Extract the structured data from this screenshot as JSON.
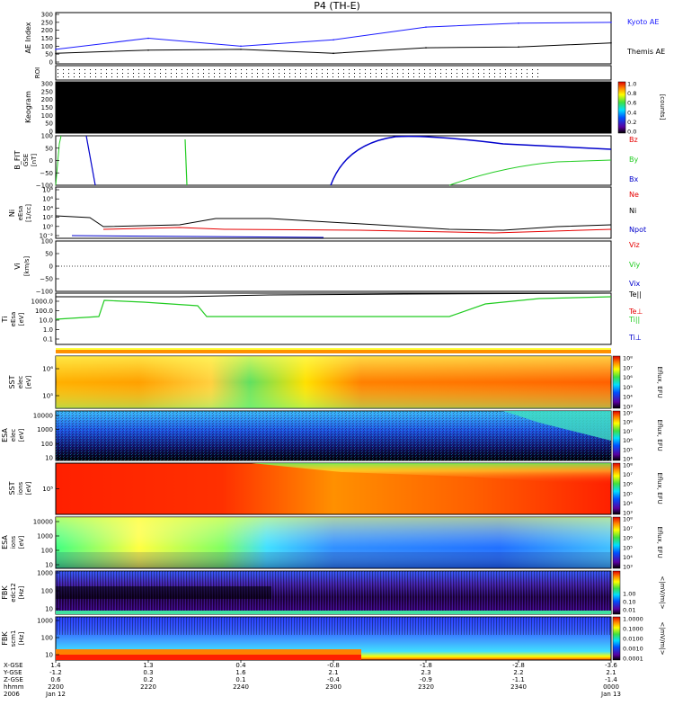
{
  "title": "P4 (TH-E)",
  "colors": {
    "kyoto_ae": "#1a1aff",
    "themis_ae": "#000000",
    "bz": "#e60000",
    "by": "#22cc22",
    "bx": "#0000cc",
    "ne": "#e60000",
    "ni": "#000000",
    "npot": "#0000cc",
    "te_par": "#000000",
    "te_perp": "#e60000",
    "ti_par": "#22cc22",
    "ti_perp": "#0000cc"
  },
  "panels": {
    "ae": {
      "ylabel": "AE Index",
      "yticks": [
        "300",
        "250",
        "200",
        "150",
        "100",
        "50",
        "0"
      ],
      "legend": [
        {
          "label": "Kyoto AE",
          "color": "#1a1aff"
        },
        {
          "label": "Themis AE",
          "color": "#000000"
        }
      ]
    },
    "roi": {
      "ylabel": "ROI"
    },
    "keogram": {
      "ylabel": "Keogram",
      "yticks": [
        "300",
        "250",
        "200",
        "150",
        "100",
        "50",
        "0"
      ],
      "colorbar_ticks": [
        "1.0",
        "0.8",
        "0.6",
        "0.4",
        "0.2",
        "0.0"
      ],
      "colorbar_label": "[counts]"
    },
    "bfit": {
      "ylabel": "B_FIT",
      "ylabel2": "GSE",
      "ylabel3": "[nT]",
      "yticks": [
        "100",
        "50",
        "0",
        "−50",
        "−100"
      ],
      "legend": [
        {
          "label": "Bz",
          "color": "#e60000"
        },
        {
          "label": "By",
          "color": "#22cc22"
        },
        {
          "label": "Bx",
          "color": "#0000cc"
        }
      ]
    },
    "ni": {
      "ylabel": "Ni",
      "ylabel2": "eEsa",
      "ylabel3": "[1/cc]",
      "yticks": [
        "10⁸",
        "10⁶",
        "10⁴",
        "10²",
        "10⁰",
        "10⁻²"
      ],
      "legend": [
        {
          "label": "Ne",
          "color": "#e60000"
        },
        {
          "label": "Ni",
          "color": "#000000"
        },
        {
          "label": "Npot",
          "color": "#0000cc"
        }
      ]
    },
    "vi": {
      "ylabel": "Vi",
      "ylabel3": "[km/s]",
      "yticks": [
        "100",
        "50",
        "0",
        "−50",
        "−100"
      ],
      "legend": [
        {
          "label": "Viz",
          "color": "#e60000"
        },
        {
          "label": "Viy",
          "color": "#22cc22"
        },
        {
          "label": "Vix",
          "color": "#0000cc"
        }
      ]
    },
    "ti": {
      "ylabel": "Ti",
      "ylabel2": "eEsa",
      "ylabel3": "[eV]",
      "yticks": [
        "1000.0",
        "100.0",
        "10.0",
        "1.0",
        "0.1"
      ],
      "legend": [
        {
          "label": "Te||",
          "color": "#000000"
        },
        {
          "label": "Te⊥",
          "color": "#e60000"
        },
        {
          "label": "Ti||",
          "color": "#22cc22"
        },
        {
          "label": "Ti⊥",
          "color": "#0000cc"
        }
      ]
    },
    "sst_e": {
      "ylabel": "SST",
      "ylabel2": "elec",
      "ylabel3": "[eV]",
      "yticks": [
        "10⁶",
        "10⁵"
      ],
      "colorbar_ticks": [
        "10⁸",
        "10⁷",
        "10⁶",
        "10⁵",
        "10⁴",
        "10³"
      ],
      "colorbar_label": "Eflux, EFU"
    },
    "esa_e": {
      "ylabel": "ESA",
      "ylabel2": "elec",
      "ylabel3": "[eV]",
      "yticks": [
        "10000",
        "1000",
        "100",
        "10"
      ],
      "colorbar_ticks": [
        "10⁹",
        "10⁸",
        "10⁷",
        "10⁶",
        "10⁵",
        "10⁴"
      ],
      "colorbar_label": "Eflux, EFU"
    },
    "sst_i": {
      "ylabel": "SST",
      "ylabel2": "ions",
      "ylabel3": "[eV]",
      "yticks": [
        "10⁵"
      ],
      "colorbar_ticks": [
        "10⁸",
        "10⁷",
        "10⁶",
        "10⁵",
        "10⁴",
        "10³"
      ],
      "colorbar_label": "Eflux, EFU"
    },
    "esa_i": {
      "ylabel": "ESA",
      "ylabel2": "ions",
      "ylabel3": "[eV]",
      "yticks": [
        "10000",
        "1000",
        "100",
        "10"
      ],
      "colorbar_ticks": [
        "10⁸",
        "10⁷",
        "10⁶",
        "10⁵",
        "10⁴",
        "10³"
      ],
      "colorbar_label": "Eflux, EFU"
    },
    "fbk_e": {
      "ylabel": "FBK",
      "ylabel2": "edc12",
      "ylabel3": "[Hz]",
      "yticks": [
        "1000",
        "100",
        "10"
      ],
      "colorbar_ticks": [
        "1.00",
        "0.10",
        "0.01"
      ],
      "colorbar_label": "<|mV/m|>"
    },
    "fbk_s": {
      "ylabel": "FBK",
      "ylabel2": "scm1",
      "ylabel3": "[Hz]",
      "yticks": [
        "1000",
        "100",
        "10"
      ],
      "colorbar_ticks": [
        "1.0000",
        "0.1000",
        "0.0100",
        "0.0010",
        "0.0001"
      ],
      "colorbar_label": "<|mV/m|>"
    }
  },
  "xaxis": {
    "row_labels": [
      "X-GSE",
      "Y-GSE",
      "Z-GSE",
      "hhmm",
      "2006"
    ],
    "columns": [
      {
        "x": "1.4",
        "y": "-1.2",
        "z": "0.6",
        "t": "2200",
        "d": "Jan 12"
      },
      {
        "x": "1.3",
        "y": "0.3",
        "z": "0.2",
        "t": "2220",
        "d": ""
      },
      {
        "x": "0.4",
        "y": "1.6",
        "z": "0.1",
        "t": "2240",
        "d": ""
      },
      {
        "x": "-0.8",
        "y": "2.1",
        "z": "-0.4",
        "t": "2300",
        "d": ""
      },
      {
        "x": "-1.8",
        "y": "2.3",
        "z": "-0.9",
        "t": "2320",
        "d": ""
      },
      {
        "x": "-2.8",
        "y": "2.2",
        "z": "-1.1",
        "t": "2340",
        "d": ""
      },
      {
        "x": "-3.6",
        "y": "2.1",
        "z": "-1.4",
        "t": "0000",
        "d": "Jan 13"
      }
    ]
  },
  "chart_data": {
    "type": "line",
    "title": "P4 (TH-E)",
    "x_unit": "hhmm",
    "x": [
      "2200",
      "2220",
      "2240",
      "2300",
      "2320",
      "2340",
      "0000"
    ],
    "series": [
      {
        "name": "Kyoto AE",
        "values": [
          80,
          150,
          100,
          140,
          220,
          245,
          250
        ]
      },
      {
        "name": "Themis AE",
        "values": [
          55,
          75,
          80,
          55,
          90,
          95,
          120
        ]
      }
    ],
    "ylabel": "AE Index",
    "ylim": [
      0,
      300
    ]
  }
}
